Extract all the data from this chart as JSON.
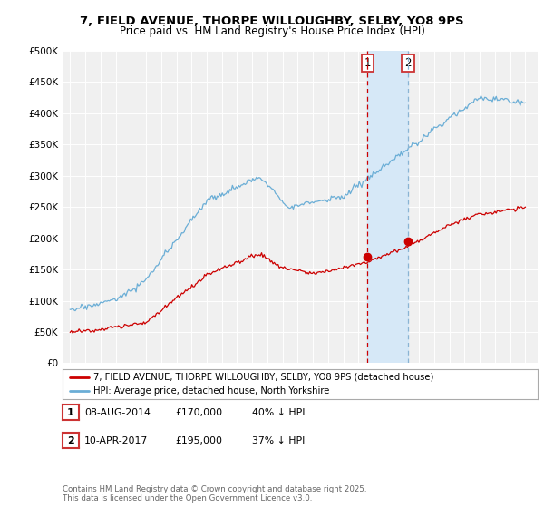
{
  "title": "7, FIELD AVENUE, THORPE WILLOUGHBY, SELBY, YO8 9PS",
  "subtitle": "Price paid vs. HM Land Registry's House Price Index (HPI)",
  "ylim": [
    0,
    500000
  ],
  "yticks": [
    0,
    50000,
    100000,
    150000,
    200000,
    250000,
    300000,
    350000,
    400000,
    450000,
    500000
  ],
  "ytick_labels": [
    "£0",
    "£50K",
    "£100K",
    "£150K",
    "£200K",
    "£250K",
    "£300K",
    "£350K",
    "£400K",
    "£450K",
    "£500K"
  ],
  "background_color": "#ffffff",
  "plot_bg_color": "#f0f0f0",
  "grid_color": "#ffffff",
  "hpi_color": "#6baed6",
  "price_color": "#cc0000",
  "shade_color": "#d6e8f7",
  "transaction1_date": 2014.6,
  "transaction1_price": 170000,
  "transaction2_date": 2017.27,
  "transaction2_price": 195000,
  "legend_line1": "7, FIELD AVENUE, THORPE WILLOUGHBY, SELBY, YO8 9PS (detached house)",
  "legend_line2": "HPI: Average price, detached house, North Yorkshire",
  "table_row1": [
    "1",
    "08-AUG-2014",
    "£170,000",
    "40% ↓ HPI"
  ],
  "table_row2": [
    "2",
    "10-APR-2017",
    "£195,000",
    "37% ↓ HPI"
  ],
  "footer": "Contains HM Land Registry data © Crown copyright and database right 2025.\nThis data is licensed under the Open Government Licence v3.0.",
  "title_fontsize": 9.5,
  "subtitle_fontsize": 8.5
}
